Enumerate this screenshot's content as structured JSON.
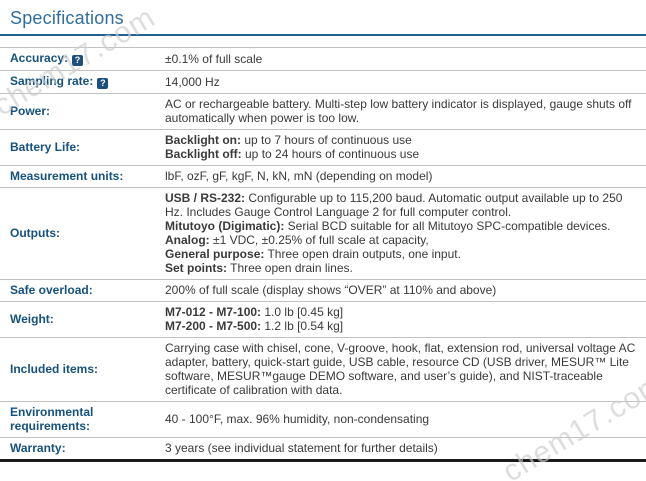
{
  "header": {
    "title": "Specifications"
  },
  "watermark": {
    "text": "chem17.com"
  },
  "colors": {
    "heading": "#2f6e9e",
    "rule": "#20618f",
    "label": "#15527d",
    "value": "#3a3a3a",
    "divider": "#c2c2c2",
    "table-end": "#1b1b1b",
    "help-bg": "#1c4f7c",
    "watermark": "#cccccc"
  },
  "table": {
    "help_icon_glyph": "?",
    "rows": [
      {
        "id": "accuracy",
        "label": "Accuracy:",
        "help": true,
        "parts": [
          {
            "text": "±0.1% of full scale"
          }
        ]
      },
      {
        "id": "sampling-rate",
        "label": "Sampling rate:",
        "help": true,
        "parts": [
          {
            "text": "14,000 Hz"
          }
        ]
      },
      {
        "id": "power",
        "label": "Power:",
        "help": false,
        "parts": [
          {
            "text": "AC or rechargeable battery. Multi-step low battery indicator is displayed, gauge shuts off automatically when power is too low."
          }
        ]
      },
      {
        "id": "battery-life",
        "label": "Battery Life:",
        "help": false,
        "parts": [
          {
            "prefix": "Backlight on:",
            "text": " up to 7 hours of continuous use"
          },
          {
            "prefix": "Backlight off:",
            "text": " up to 24 hours of continuous use"
          }
        ]
      },
      {
        "id": "measurement-units",
        "label": "Measurement units:",
        "help": false,
        "parts": [
          {
            "text": "lbF, ozF, gF, kgF, N, kN, mN (depending on model)"
          }
        ]
      },
      {
        "id": "outputs",
        "label": "Outputs:",
        "help": false,
        "parts": [
          {
            "prefix": "USB / RS-232:",
            "text": " Configurable up to 115,200 baud. Automatic output available up to 250 Hz. Includes Gauge Control Language 2 for full computer control."
          },
          {
            "prefix": "Mitutoyo (Digimatic):",
            "text": " Serial BCD suitable for all Mitutoyo SPC-compatible devices."
          },
          {
            "prefix": "Analog:",
            "text": " ±1 VDC, ±0.25% of full scale at capacity,"
          },
          {
            "prefix": "General purpose:",
            "text": " Three open drain outputs, one input."
          },
          {
            "prefix": "Set points:",
            "text": " Three open drain lines."
          }
        ]
      },
      {
        "id": "safe-overload",
        "label": "Safe overload:",
        "help": false,
        "parts": [
          {
            "text": "200% of full scale (display shows “OVER” at 110% and above)"
          }
        ]
      },
      {
        "id": "weight",
        "label": "Weight:",
        "help": false,
        "parts": [
          {
            "prefix": "M7-012 - M7-100:",
            "text": " 1.0 lb [0.45 kg]"
          },
          {
            "prefix": "M7-200 - M7-500:",
            "text": " 1.2 lb [0.54 kg]"
          }
        ]
      },
      {
        "id": "included-items",
        "label": "Included items:",
        "help": false,
        "parts": [
          {
            "text": "Carrying case with chisel, cone, V-groove, hook, flat, extension rod, universal voltage AC adapter, battery, quick-start guide, USB cable, resource CD (USB driver, MESUR™ Lite software, MESUR™gauge DEMO software, and user’s guide), and NIST-traceable certificate of calibration with data."
          }
        ]
      },
      {
        "id": "environmental-requirements",
        "label": "Environmental requirements:",
        "help": false,
        "parts": [
          {
            "text": "40 - 100°F, max. 96% humidity, non-condensating"
          }
        ]
      },
      {
        "id": "warranty",
        "label": "Warranty:",
        "help": false,
        "parts": [
          {
            "text": "3 years (see individual statement for further details)"
          }
        ]
      }
    ]
  }
}
